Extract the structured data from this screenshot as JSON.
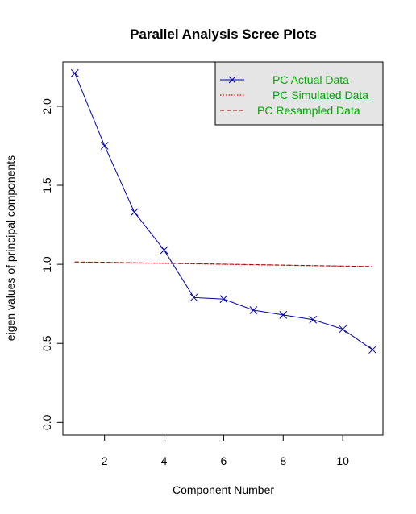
{
  "chart_data": {
    "type": "line",
    "title": "Parallel Analysis Scree Plots",
    "xlabel": "Component Number",
    "ylabel": "eigen values of principal components",
    "xlim": [
      0.6,
      11.35
    ],
    "ylim": [
      -0.08,
      2.28
    ],
    "xticks": [
      2,
      4,
      6,
      8,
      10
    ],
    "yticks": [
      0.0,
      0.5,
      1.0,
      1.5,
      2.0
    ],
    "ytick_labels": [
      "0.0",
      "0.5",
      "1.0",
      "1.5",
      "2.0"
    ],
    "grid": false,
    "legend_position": "top-right",
    "colors": {
      "actual": "#0000aa",
      "simulated": "#ff0000",
      "resampled": "#aa0000",
      "legend_bg": "#e5e5e5",
      "legend_text": "#00aa00"
    },
    "x": [
      1,
      2,
      3,
      4,
      5,
      6,
      7,
      8,
      9,
      10,
      11
    ],
    "series": [
      {
        "name": "PC  Actual Data",
        "style": "solid-with-x-markers",
        "values": [
          2.21,
          1.75,
          1.33,
          1.09,
          0.79,
          0.78,
          0.71,
          0.68,
          0.65,
          0.59,
          0.46
        ]
      },
      {
        "name": "PC  Simulated Data",
        "style": "dotted",
        "values": [
          1.013,
          1.012,
          1.009,
          1.006,
          1.003,
          1.0,
          0.997,
          0.994,
          0.991,
          0.988,
          0.985
        ]
      },
      {
        "name": "PC  Resampled Data",
        "style": "dashed",
        "values": [
          1.015,
          1.013,
          1.01,
          1.007,
          1.004,
          1.001,
          0.998,
          0.995,
          0.992,
          0.989,
          0.986
        ]
      }
    ]
  }
}
